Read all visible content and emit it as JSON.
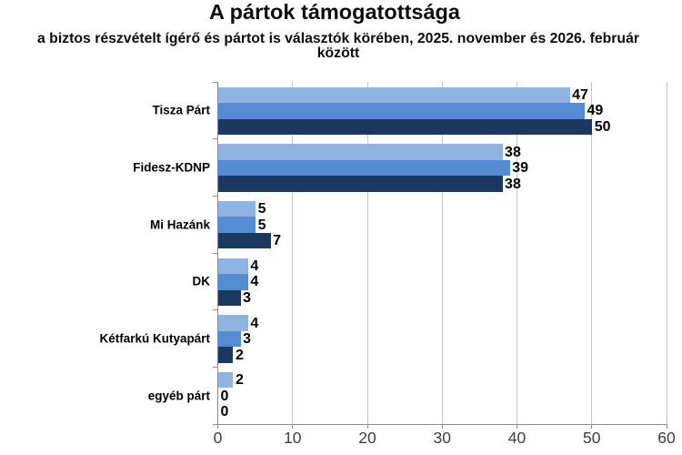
{
  "chart_data": {
    "type": "bar",
    "orientation": "horizontal",
    "title": "A pártok támogatottsága",
    "subtitle": "a biztos részvételt ígérő és pártot is választók körében, 2025. november és 2026. február\nközött",
    "categories": [
      "Tisza Párt",
      "Fidesz-KDNP",
      "Mi Hazánk",
      "DK",
      "Kétfarkú Kutyapárt",
      "egyéb párt"
    ],
    "series": [
      {
        "color": "#8fb4e2",
        "values": [
          47,
          38,
          5,
          4,
          4,
          2
        ]
      },
      {
        "color": "#548bd3",
        "values": [
          49,
          39,
          5,
          4,
          3,
          0
        ]
      },
      {
        "color": "#1b3861",
        "values": [
          50,
          38,
          7,
          3,
          2,
          0
        ]
      }
    ],
    "xlabel": "",
    "ylabel": "",
    "xlim": [
      0,
      60
    ],
    "x_ticks": [
      "0",
      "10",
      "20",
      "30",
      "40",
      "50",
      "60"
    ],
    "grid": "vertical-major",
    "legend_position": "none",
    "data_labels": "outside-end-bold",
    "colors": {
      "gridline": "#c6c6c6",
      "axis_line": "#8c8c8c",
      "tick_label_text": "#3f3f3f",
      "label_text": "#000000",
      "background": "#ffffff"
    }
  }
}
